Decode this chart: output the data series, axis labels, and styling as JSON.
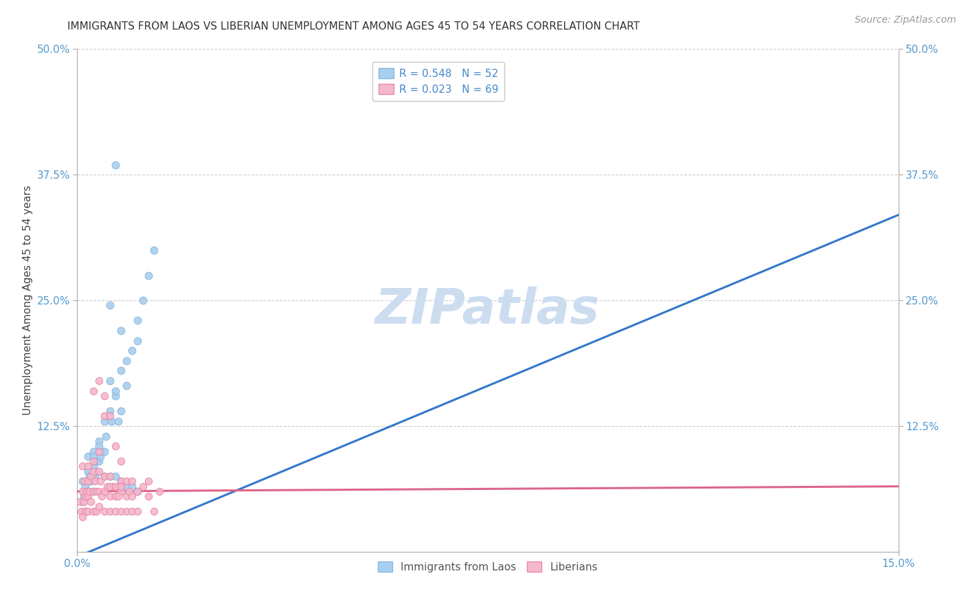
{
  "title": "IMMIGRANTS FROM LAOS VS LIBERIAN UNEMPLOYMENT AMONG AGES 45 TO 54 YEARS CORRELATION CHART",
  "source_text": "Source: ZipAtlas.com",
  "ylabel": "Unemployment Among Ages 45 to 54 years",
  "xlim": [
    0.0,
    0.15
  ],
  "ylim": [
    0.0,
    0.5
  ],
  "ytick_positions": [
    0.125,
    0.25,
    0.375,
    0.5
  ],
  "ytick_labels": [
    "12.5%",
    "25.0%",
    "37.5%",
    "50.0%"
  ],
  "xtick_positions": [
    0.0,
    0.15
  ],
  "xtick_labels": [
    "0.0%",
    "15.0%"
  ],
  "grid_color": "#cccccc",
  "background_color": "#ffffff",
  "watermark": "ZIPatlas",
  "watermark_color": "#ccddf0",
  "series": [
    {
      "label": "Immigrants from Laos",
      "R": 0.548,
      "N": 52,
      "color": "#aacfee",
      "edge_color": "#88b8e0",
      "trend_color": "#3377cc",
      "marker_size": 60,
      "x": [
        0.001,
        0.001,
        0.0012,
        0.0015,
        0.0015,
        0.0017,
        0.002,
        0.002,
        0.0022,
        0.0025,
        0.003,
        0.003,
        0.003,
        0.0032,
        0.0033,
        0.0035,
        0.004,
        0.004,
        0.0042,
        0.0045,
        0.005,
        0.005,
        0.0052,
        0.006,
        0.006,
        0.0062,
        0.007,
        0.007,
        0.0075,
        0.008,
        0.008,
        0.009,
        0.009,
        0.01,
        0.011,
        0.011,
        0.012,
        0.013,
        0.014,
        0.002,
        0.003,
        0.004,
        0.005,
        0.006,
        0.007,
        0.008,
        0.009,
        0.01,
        0.011,
        0.006,
        0.007,
        0.008
      ],
      "y": [
        0.05,
        0.07,
        0.055,
        0.04,
        0.065,
        0.055,
        0.06,
        0.08,
        0.075,
        0.07,
        0.06,
        0.085,
        0.1,
        0.075,
        0.09,
        0.08,
        0.09,
        0.11,
        0.095,
        0.1,
        0.1,
        0.13,
        0.115,
        0.14,
        0.17,
        0.13,
        0.155,
        0.16,
        0.13,
        0.14,
        0.18,
        0.165,
        0.19,
        0.2,
        0.23,
        0.21,
        0.25,
        0.275,
        0.3,
        0.095,
        0.095,
        0.105,
        0.075,
        0.075,
        0.075,
        0.07,
        0.065,
        0.065,
        0.06,
        0.245,
        0.385,
        0.22
      ],
      "trend_x": [
        0.0,
        0.15
      ],
      "trend_y": [
        -0.005,
        0.335
      ]
    },
    {
      "label": "Liberians",
      "R": 0.023,
      "N": 69,
      "color": "#f5b8cb",
      "edge_color": "#e888a8",
      "trend_color": "#dd6688",
      "marker_size": 55,
      "x": [
        0.0005,
        0.0007,
        0.001,
        0.001,
        0.0012,
        0.0013,
        0.0015,
        0.0015,
        0.0017,
        0.002,
        0.002,
        0.002,
        0.0022,
        0.0025,
        0.0025,
        0.003,
        0.003,
        0.003,
        0.0032,
        0.0035,
        0.0035,
        0.004,
        0.004,
        0.004,
        0.0042,
        0.0045,
        0.005,
        0.005,
        0.005,
        0.0055,
        0.006,
        0.006,
        0.006,
        0.0065,
        0.007,
        0.007,
        0.0075,
        0.008,
        0.008,
        0.009,
        0.009,
        0.0095,
        0.01,
        0.01,
        0.011,
        0.011,
        0.012,
        0.013,
        0.014,
        0.015,
        0.001,
        0.002,
        0.003,
        0.004,
        0.005,
        0.006,
        0.007,
        0.008,
        0.009,
        0.01,
        0.003,
        0.004,
        0.005,
        0.006,
        0.007,
        0.008,
        0.0075,
        0.008,
        0.013
      ],
      "y": [
        0.05,
        0.04,
        0.06,
        0.035,
        0.05,
        0.07,
        0.055,
        0.04,
        0.06,
        0.055,
        0.04,
        0.07,
        0.06,
        0.05,
        0.075,
        0.06,
        0.04,
        0.08,
        0.07,
        0.06,
        0.04,
        0.06,
        0.08,
        0.045,
        0.07,
        0.055,
        0.06,
        0.04,
        0.075,
        0.065,
        0.055,
        0.075,
        0.04,
        0.065,
        0.055,
        0.04,
        0.065,
        0.06,
        0.04,
        0.055,
        0.04,
        0.06,
        0.055,
        0.04,
        0.06,
        0.04,
        0.065,
        0.055,
        0.04,
        0.06,
        0.085,
        0.085,
        0.09,
        0.1,
        0.135,
        0.135,
        0.105,
        0.07,
        0.07,
        0.07,
        0.16,
        0.17,
        0.155,
        0.065,
        0.065,
        0.065,
        0.055,
        0.09,
        0.07
      ],
      "trend_x": [
        0.0,
        0.15
      ],
      "trend_y": [
        0.06,
        0.065
      ]
    }
  ],
  "title_fontsize": 11,
  "axis_label_fontsize": 11,
  "tick_fontsize": 11,
  "source_fontsize": 10,
  "watermark_fontsize": 52
}
